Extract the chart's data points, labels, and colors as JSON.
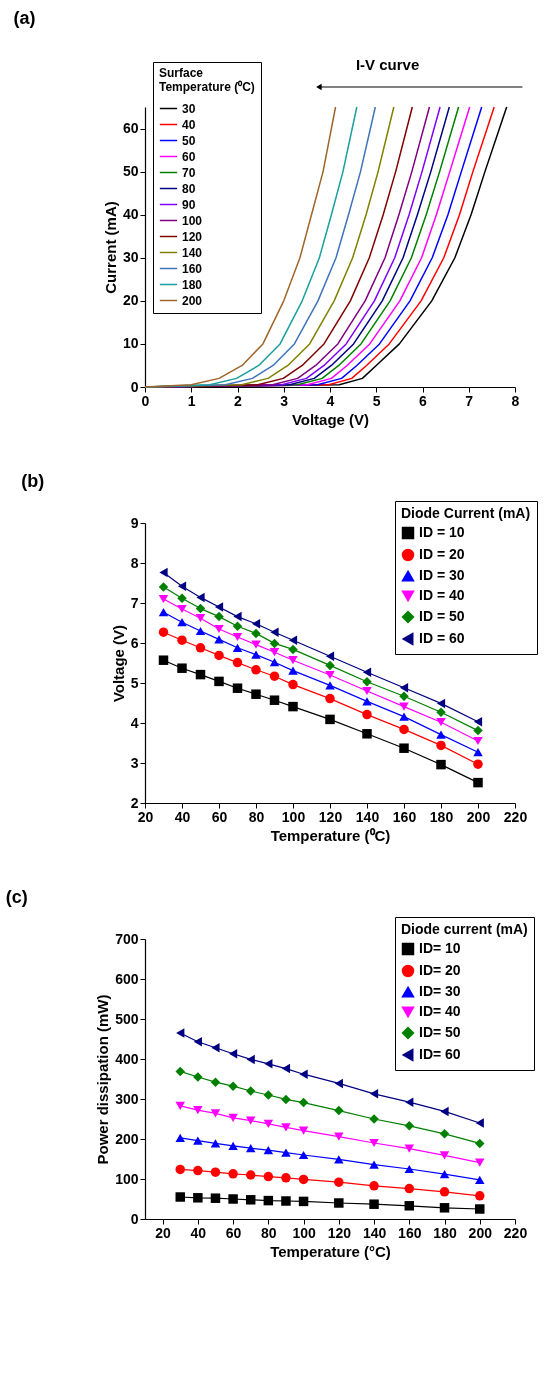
{
  "chart_data": [
    {
      "type": "line",
      "title": "(a)",
      "xlabel": "Voltage (V)",
      "ylabel": "Current (mA)",
      "legend_title": "Surface Temperature (⁰C)",
      "legend": "top left",
      "grid": false,
      "marker": "none",
      "annotations": [
        "I-V curve"
      ],
      "xlim": [
        0,
        8
      ],
      "ylim": [
        0,
        65
      ],
      "xticks": [
        0,
        1,
        2,
        3,
        4,
        5,
        6,
        7,
        8
      ],
      "yticks": [
        0,
        10,
        20,
        30,
        40,
        50,
        60
      ],
      "series": [
        {
          "name": "30",
          "color": "#000000",
          "x": [
            0,
            4.2,
            4.7,
            5.0,
            5.5,
            6.2,
            6.7,
            7.05,
            7.35,
            7.82
          ],
          "values": [
            0,
            0.5,
            2,
            5,
            10,
            20,
            30,
            40,
            50,
            65
          ]
        },
        {
          "name": "40",
          "color": "#ff0000",
          "x": [
            0,
            3.97,
            4.47,
            4.79,
            5.28,
            5.97,
            6.46,
            6.8,
            7.09,
            7.55
          ],
          "values": [
            0,
            0.5,
            2,
            5,
            10,
            20,
            30,
            40,
            50,
            65
          ]
        },
        {
          "name": "50",
          "color": "#0000ff",
          "x": [
            0,
            3.73,
            4.25,
            4.58,
            5.07,
            5.73,
            6.21,
            6.55,
            6.84,
            7.28
          ],
          "values": [
            0,
            0.5,
            2,
            5,
            10,
            20,
            30,
            40,
            50,
            65
          ]
        },
        {
          "name": "60",
          "color": "#ff00ff",
          "x": [
            0,
            3.51,
            4.03,
            4.37,
            4.86,
            5.51,
            5.98,
            6.3,
            6.59,
            7.02
          ],
          "values": [
            0,
            0.5,
            2,
            5,
            10,
            20,
            30,
            40,
            50,
            65
          ]
        },
        {
          "name": "70",
          "color": "#008000",
          "x": [
            0,
            3.3,
            3.83,
            4.19,
            4.67,
            5.3,
            5.76,
            6.08,
            6.37,
            6.78
          ],
          "values": [
            0,
            0.5,
            2,
            5,
            10,
            20,
            30,
            40,
            50,
            65
          ]
        },
        {
          "name": "80",
          "color": "#000080",
          "x": [
            0,
            3.13,
            3.66,
            4.03,
            4.51,
            5.13,
            5.58,
            5.89,
            6.18,
            6.58
          ],
          "values": [
            0,
            0.5,
            2,
            5,
            10,
            20,
            30,
            40,
            50,
            65
          ]
        },
        {
          "name": "90",
          "color": "#8000ff",
          "x": [
            0,
            2.96,
            3.49,
            3.87,
            4.35,
            4.96,
            5.4,
            5.71,
            5.99,
            6.38
          ],
          "values": [
            0,
            0.5,
            2,
            5,
            10,
            20,
            30,
            40,
            50,
            65
          ]
        },
        {
          "name": "100",
          "color": "#800080",
          "x": [
            0,
            2.76,
            3.3,
            3.69,
            4.17,
            4.76,
            5.19,
            5.49,
            5.77,
            6.15
          ],
          "values": [
            0,
            0.5,
            2,
            5,
            10,
            20,
            30,
            40,
            50,
            65
          ]
        },
        {
          "name": "120",
          "color": "#800000",
          "x": [
            0,
            2.44,
            2.99,
            3.4,
            3.87,
            4.44,
            4.85,
            5.15,
            5.42,
            5.78
          ],
          "values": [
            0,
            0.5,
            2,
            5,
            10,
            20,
            30,
            40,
            50,
            65
          ]
        },
        {
          "name": "140",
          "color": "#808000",
          "x": [
            0,
            2.09,
            2.66,
            3.09,
            3.56,
            4.09,
            4.49,
            4.78,
            5.04,
            5.38
          ],
          "values": [
            0,
            0.5,
            2,
            5,
            10,
            20,
            30,
            40,
            50,
            65
          ]
        },
        {
          "name": "160",
          "color": "#3f74b8",
          "x": [
            0,
            1.74,
            2.32,
            2.77,
            3.23,
            3.74,
            4.13,
            4.4,
            4.66,
            4.98
          ],
          "values": [
            0,
            0.5,
            2,
            5,
            10,
            20,
            30,
            40,
            50,
            65
          ]
        },
        {
          "name": "180",
          "color": "#1b9e9e",
          "x": [
            0,
            1.4,
            1.98,
            2.46,
            2.92,
            3.4,
            3.77,
            4.03,
            4.28,
            4.58
          ],
          "values": [
            0,
            0.5,
            2,
            5,
            10,
            20,
            30,
            40,
            50,
            65
          ]
        },
        {
          "name": "200",
          "color": "#a0652a",
          "x": [
            0,
            1.0,
            1.6,
            2.1,
            2.55,
            3.0,
            3.35,
            3.6,
            3.85,
            4.12
          ],
          "values": [
            0,
            0.5,
            2,
            5,
            10,
            20,
            30,
            40,
            50,
            65
          ]
        }
      ]
    },
    {
      "type": "line",
      "title": "(b)",
      "xlabel": "Temperature (⁰C)",
      "ylabel": "Voltage (V)",
      "legend_title": "Diode Current (mA)",
      "legend": "top right",
      "grid": false,
      "x": [
        30,
        40,
        50,
        60,
        70,
        80,
        90,
        100,
        120,
        140,
        160,
        180,
        200
      ],
      "xlim": [
        20,
        220
      ],
      "ylim": [
        2,
        9
      ],
      "xticks": [
        20,
        40,
        60,
        80,
        100,
        120,
        140,
        160,
        180,
        200,
        220
      ],
      "yticks": [
        2,
        3,
        4,
        5,
        6,
        7,
        8,
        9
      ],
      "series": [
        {
          "name": "ID = 10",
          "color": "#000000",
          "marker": "square",
          "values": [
            5.57,
            5.37,
            5.21,
            5.04,
            4.87,
            4.72,
            4.57,
            4.41,
            4.09,
            3.73,
            3.37,
            2.96,
            2.51
          ]
        },
        {
          "name": "ID = 20",
          "color": "#ff0000",
          "marker": "circle",
          "values": [
            6.27,
            6.07,
            5.88,
            5.69,
            5.51,
            5.33,
            5.17,
            4.96,
            4.61,
            4.21,
            3.84,
            3.44,
            2.97
          ]
        },
        {
          "name": "ID = 30",
          "color": "#0000ff",
          "marker": "triangle",
          "values": [
            6.77,
            6.52,
            6.3,
            6.09,
            5.88,
            5.71,
            5.52,
            5.31,
            4.94,
            4.54,
            4.16,
            3.71,
            3.27
          ]
        },
        {
          "name": "ID = 40",
          "color": "#ff00ff",
          "marker": "triangle-down",
          "values": [
            7.1,
            6.85,
            6.62,
            6.35,
            6.15,
            5.96,
            5.77,
            5.57,
            5.2,
            4.8,
            4.41,
            4.02,
            3.55
          ]
        },
        {
          "name": "ID = 50",
          "color": "#008000",
          "marker": "diamond",
          "values": [
            7.4,
            7.12,
            6.86,
            6.66,
            6.42,
            6.24,
            5.99,
            5.84,
            5.44,
            5.03,
            4.67,
            4.27,
            3.81
          ]
        },
        {
          "name": "ID = 60",
          "color": "#000080",
          "marker": "triangle-left",
          "values": [
            7.76,
            7.42,
            7.14,
            6.9,
            6.66,
            6.48,
            6.27,
            6.07,
            5.67,
            5.27,
            4.88,
            4.49,
            4.03
          ]
        }
      ]
    },
    {
      "type": "line",
      "title": "(c)",
      "xlabel": "Temperature (°C)",
      "ylabel": "Power dissipation (mW)",
      "legend_title": "Diode current (mA)",
      "legend": "top right",
      "grid": false,
      "x": [
        30,
        40,
        50,
        60,
        70,
        80,
        90,
        100,
        120,
        140,
        160,
        180,
        200
      ],
      "xlim": [
        10,
        220
      ],
      "ylim": [
        0,
        700
      ],
      "xticks": [
        20,
        40,
        60,
        80,
        100,
        120,
        140,
        160,
        180,
        200,
        220
      ],
      "yticks": [
        0,
        100,
        200,
        300,
        400,
        500,
        600,
        700
      ],
      "series": [
        {
          "name": "ID= 10",
          "color": "#000000",
          "marker": "square",
          "values": [
            55,
            53,
            52,
            50,
            48,
            46,
            45,
            44,
            40,
            37,
            33,
            28,
            25
          ]
        },
        {
          "name": "ID= 20",
          "color": "#ff0000",
          "marker": "circle",
          "values": [
            124,
            121,
            117,
            113,
            110,
            106,
            103,
            99,
            92,
            83,
            76,
            68,
            58
          ]
        },
        {
          "name": "ID= 30",
          "color": "#0000ff",
          "marker": "triangle",
          "values": [
            203,
            196,
            189,
            183,
            177,
            172,
            166,
            160,
            149,
            136,
            125,
            112,
            98
          ]
        },
        {
          "name": "ID= 40",
          "color": "#ff00ff",
          "marker": "triangle-down",
          "values": [
            283,
            272,
            264,
            253,
            246,
            238,
            229,
            221,
            206,
            190,
            176,
            159,
            141
          ]
        },
        {
          "name": "ID= 50",
          "color": "#008000",
          "marker": "diamond",
          "values": [
            369,
            355,
            342,
            332,
            320,
            310,
            299,
            291,
            271,
            250,
            233,
            213,
            189
          ]
        },
        {
          "name": "ID= 60",
          "color": "#000080",
          "marker": "triangle-left",
          "values": [
            465,
            443,
            428,
            413,
            399,
            388,
            376,
            362,
            339,
            313,
            292,
            269,
            240
          ]
        }
      ]
    }
  ]
}
